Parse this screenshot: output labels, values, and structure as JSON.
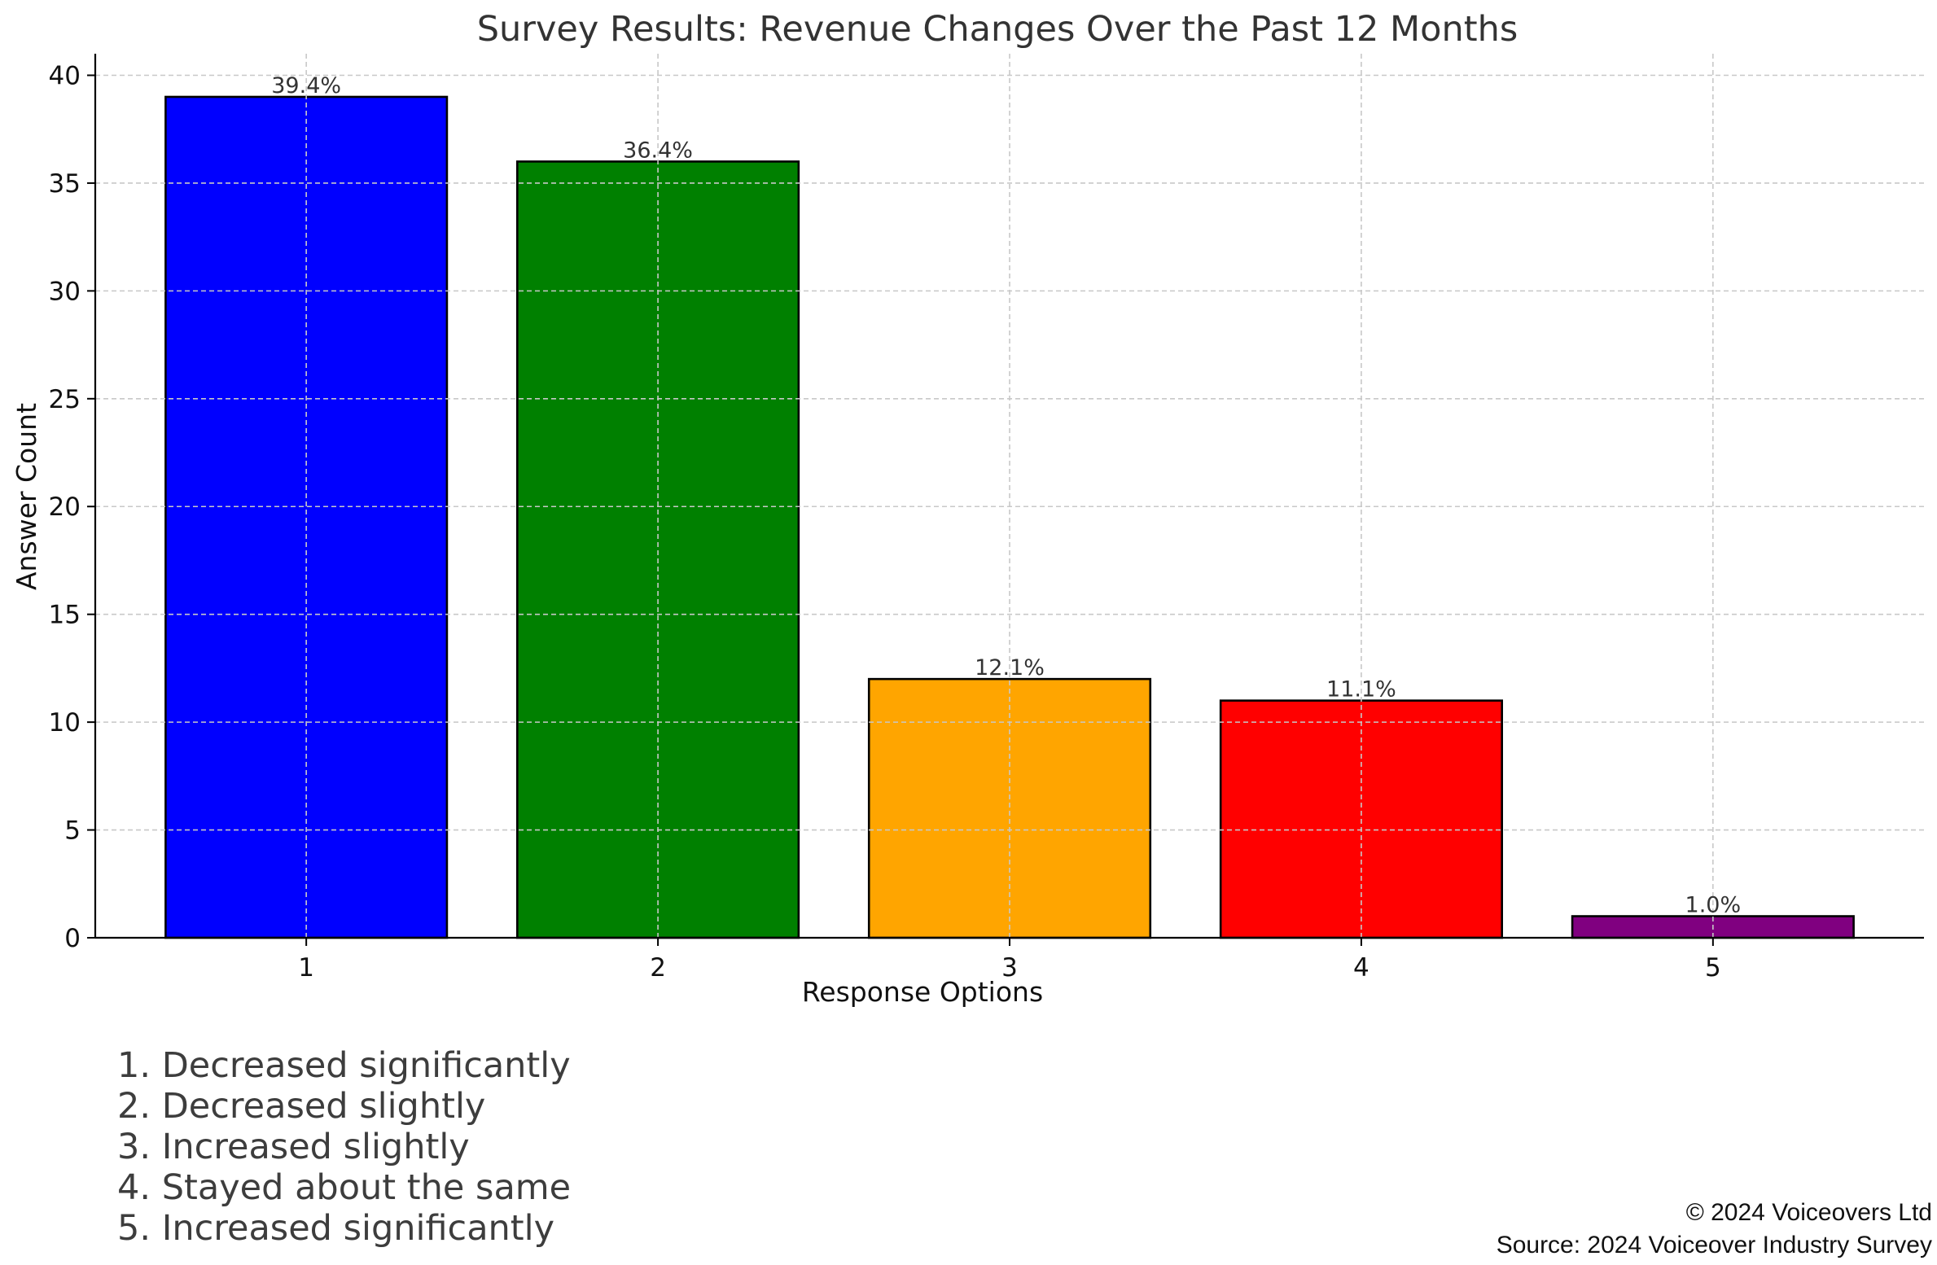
{
  "chart_data": {
    "type": "bar",
    "title": "Survey Results: Revenue Changes Over the Past 12 Months",
    "xlabel": "Response Options",
    "ylabel": "Answer Count",
    "categories": [
      "1",
      "2",
      "3",
      "4",
      "5"
    ],
    "values": [
      39,
      36,
      12,
      11,
      1
    ],
    "data_labels": [
      "39.4%",
      "36.4%",
      "12.1%",
      "11.1%",
      "1.0%"
    ],
    "colors": [
      "#0000ff",
      "#008000",
      "#ffa500",
      "#ff0000",
      "#800080"
    ],
    "ylim": [
      0,
      41
    ],
    "yticks": [
      "0",
      "5",
      "10",
      "15",
      "20",
      "25",
      "30",
      "35",
      "40"
    ],
    "grid": true
  },
  "legend_items": [
    "1. Decreased significantly",
    "2. Decreased slightly",
    "3. Increased slightly",
    "4. Stayed about the same",
    "5. Increased significantly"
  ],
  "footer": {
    "copyright": "© 2024 Voiceovers Ltd",
    "source": "Source: 2024 Voiceover Industry Survey"
  }
}
